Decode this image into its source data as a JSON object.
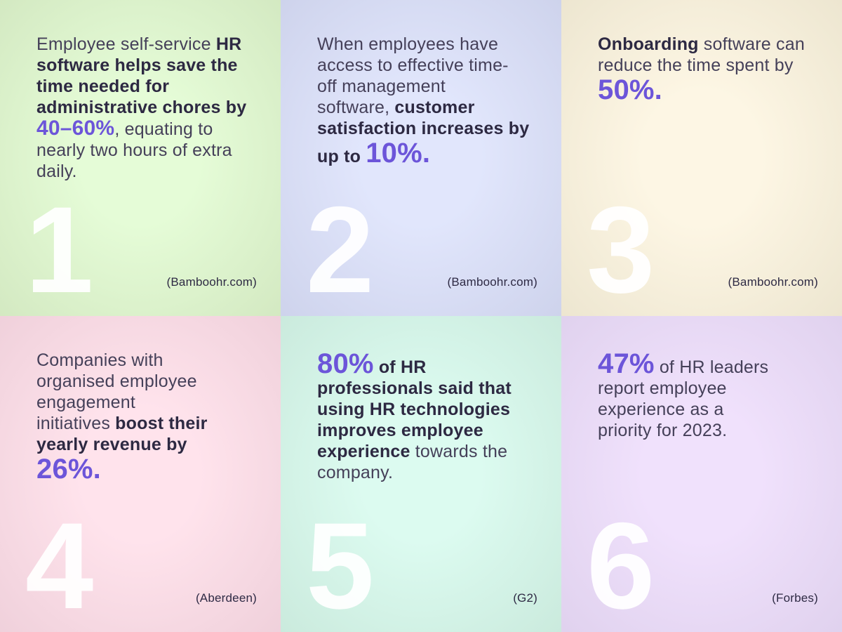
{
  "theme": {
    "accent_color": "#6c55d9",
    "regular_text_color": "#454059",
    "bold_text_color": "#2d2942",
    "number_color": "rgba(255,255,255,0.93)"
  },
  "cards": [
    {
      "number": "1",
      "source": "(Bamboohr.com)",
      "colors": {
        "center": "#e5fcd7",
        "edge": "#cde2ba"
      },
      "segments": [
        {
          "style": "regular",
          "text": "Employee self-service "
        },
        {
          "style": "bold",
          "text": "HR"
        },
        {
          "style": "break",
          "text": ""
        },
        {
          "style": "bold",
          "text": "software helps save the"
        },
        {
          "style": "break",
          "text": ""
        },
        {
          "style": "bold",
          "text": "time needed for"
        },
        {
          "style": "break",
          "text": ""
        },
        {
          "style": "bold",
          "text": "administrative chores by"
        },
        {
          "style": "break",
          "text": ""
        },
        {
          "style": "accent",
          "text": "40–60%"
        },
        {
          "style": "regular",
          "text": ", equating to"
        },
        {
          "style": "break",
          "text": ""
        },
        {
          "style": "regular",
          "text": "nearly two hours of extra"
        },
        {
          "style": "break",
          "text": ""
        },
        {
          "style": "regular",
          "text": "daily."
        }
      ]
    },
    {
      "number": "2",
      "source": "(Bamboohr.com)",
      "colors": {
        "center": "#e1e6fc",
        "edge": "#c7cce6"
      },
      "segments": [
        {
          "style": "regular",
          "text": "When employees have"
        },
        {
          "style": "break",
          "text": ""
        },
        {
          "style": "regular",
          "text": "access to effective time-"
        },
        {
          "style": "break",
          "text": ""
        },
        {
          "style": "regular",
          "text": "off management"
        },
        {
          "style": "break",
          "text": ""
        },
        {
          "style": "regular",
          "text": "software, "
        },
        {
          "style": "bold",
          "text": "customer"
        },
        {
          "style": "break",
          "text": ""
        },
        {
          "style": "bold",
          "text": "satisfaction increases by"
        },
        {
          "style": "break",
          "text": ""
        },
        {
          "style": "bold",
          "text": "up to "
        },
        {
          "style": "accent-large",
          "text": "10%."
        }
      ]
    },
    {
      "number": "3",
      "source": "(Bamboohr.com)",
      "colors": {
        "center": "#fdf6e4",
        "edge": "#e7e0c9"
      },
      "segments": [
        {
          "style": "bold",
          "text": "Onboarding"
        },
        {
          "style": "regular",
          "text": " software can"
        },
        {
          "style": "break",
          "text": ""
        },
        {
          "style": "regular",
          "text": "reduce the time spent by"
        },
        {
          "style": "break",
          "text": ""
        },
        {
          "style": "accent-large",
          "text": "50%."
        }
      ]
    },
    {
      "number": "4",
      "source": "(Aberdeen)",
      "colors": {
        "center": "#ffe3ec",
        "edge": "#eacad5"
      },
      "segments": [
        {
          "style": "regular",
          "text": "Companies with"
        },
        {
          "style": "break",
          "text": ""
        },
        {
          "style": "regular",
          "text": "organised employee"
        },
        {
          "style": "break",
          "text": ""
        },
        {
          "style": "regular",
          "text": "engagement"
        },
        {
          "style": "break",
          "text": ""
        },
        {
          "style": "regular",
          "text": "initiatives "
        },
        {
          "style": "bold",
          "text": "boost their"
        },
        {
          "style": "break",
          "text": ""
        },
        {
          "style": "bold",
          "text": "yearly revenue by"
        },
        {
          "style": "break",
          "text": ""
        },
        {
          "style": "accent-large",
          "text": "26%."
        }
      ]
    },
    {
      "number": "5",
      "source": "(G2)",
      "colors": {
        "center": "#dcfbf0",
        "edge": "#c4e4d6"
      },
      "segments": [
        {
          "style": "accent-large",
          "text": "80%"
        },
        {
          "style": "bold",
          "text": " of HR"
        },
        {
          "style": "break",
          "text": ""
        },
        {
          "style": "bold",
          "text": "professionals said that"
        },
        {
          "style": "break",
          "text": ""
        },
        {
          "style": "bold",
          "text": "using HR technologies"
        },
        {
          "style": "break",
          "text": ""
        },
        {
          "style": "bold",
          "text": "improves employee"
        },
        {
          "style": "break",
          "text": ""
        },
        {
          "style": "bold",
          "text": "experience"
        },
        {
          "style": "regular",
          "text": " towards the"
        },
        {
          "style": "break",
          "text": ""
        },
        {
          "style": "regular",
          "text": "company."
        }
      ]
    },
    {
      "number": "6",
      "source": "(Forbes)",
      "colors": {
        "center": "#f0e1fc",
        "edge": "#dacce9"
      },
      "segments": [
        {
          "style": "accent-large",
          "text": "47%"
        },
        {
          "style": "regular",
          "text": " of HR leaders"
        },
        {
          "style": "break",
          "text": ""
        },
        {
          "style": "regular",
          "text": "report employee"
        },
        {
          "style": "break",
          "text": ""
        },
        {
          "style": "regular",
          "text": "experience as a"
        },
        {
          "style": "break",
          "text": ""
        },
        {
          "style": "regular",
          "text": "priority for 2023."
        }
      ]
    }
  ]
}
